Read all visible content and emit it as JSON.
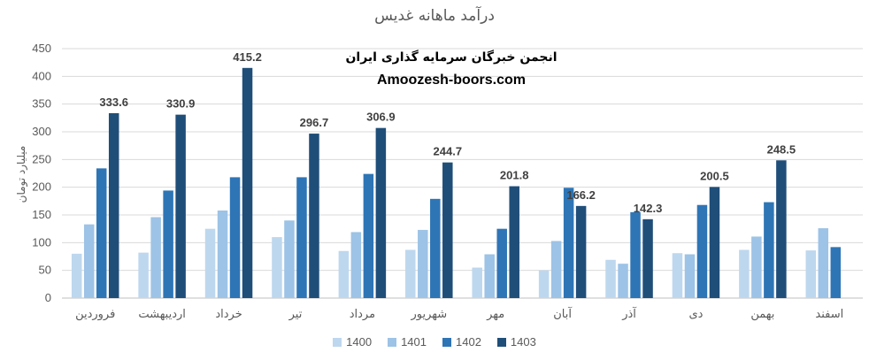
{
  "chart_data": {
    "type": "bar",
    "title": "درآمد ماهانه غدیس",
    "ylabel": "میلیارد تومان",
    "xlabel": "",
    "ylim": [
      0,
      450
    ],
    "yticks": [
      0,
      50,
      100,
      150,
      200,
      250,
      300,
      350,
      400,
      450
    ],
    "grid": true,
    "legend_position": "bottom",
    "categories": [
      "فروردین",
      "اردیبهشت",
      "خرداد",
      "تیر",
      "مرداد",
      "شهریور",
      "مهر",
      "آبان",
      "آذر",
      "دی",
      "بهمن",
      "اسفند"
    ],
    "series": [
      {
        "name": "1400",
        "color": "#bdd7ee",
        "values": [
          80,
          82,
          125,
          110,
          85,
          87,
          55,
          50,
          69,
          81,
          87,
          86
        ]
      },
      {
        "name": "1401",
        "color": "#9dc3e6",
        "values": [
          133,
          146,
          158,
          140,
          119,
          123,
          79,
          103,
          62,
          79,
          111,
          126
        ]
      },
      {
        "name": "1402",
        "color": "#2e75b6",
        "values": [
          234,
          194,
          218,
          218,
          224,
          179,
          125,
          199,
          155,
          168,
          173,
          92
        ]
      },
      {
        "name": "1403",
        "color": "#1f4e79",
        "values": [
          333.6,
          330.9,
          415.2,
          296.7,
          306.9,
          244.7,
          201.8,
          166.2,
          142.3,
          200.5,
          248.5,
          null
        ],
        "labels": [
          "333.6",
          "330.9",
          "415.2",
          "296.7",
          "306.9",
          "244.7",
          "201.8",
          "166.2",
          "142.3",
          "200.5",
          "248.5",
          ""
        ]
      }
    ]
  },
  "watermark": {
    "line1": "انجمن خبرگان سرمایه گذاری ایران",
    "line2": "Amoozesh-boors.com"
  }
}
